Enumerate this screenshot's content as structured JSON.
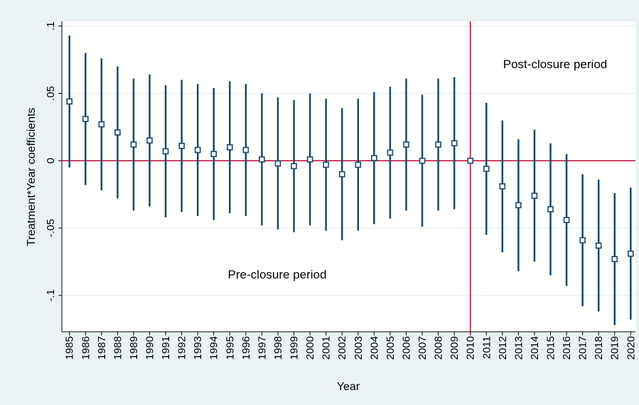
{
  "chart_data": {
    "type": "scatter",
    "subtype": "coefficient-plot-with-confidence-intervals",
    "title": "",
    "xlabel": "Year",
    "ylabel": "Treatment*Year coefficients",
    "ylim": [
      -0.127,
      0.1035
    ],
    "y_ticks": [
      0.1,
      0.05,
      0,
      -0.05,
      -0.1
    ],
    "y_tick_labels": [
      ".1",
      ".05",
      "0",
      "-.05",
      "-.1"
    ],
    "grid": true,
    "legend": "none",
    "x": [
      1985,
      1986,
      1987,
      1988,
      1989,
      1990,
      1991,
      1992,
      1993,
      1994,
      1995,
      1996,
      1997,
      1998,
      1999,
      2000,
      2001,
      2002,
      2003,
      2004,
      2005,
      2006,
      2007,
      2008,
      2009,
      2010,
      2011,
      2012,
      2013,
      2014,
      2015,
      2016,
      2017,
      2018,
      2019,
      2020
    ],
    "x_tick_labels": [
      "1985",
      "1986",
      "1987",
      "1988",
      "1989",
      "1990",
      "1991",
      "1992",
      "1993",
      "1994",
      "1995",
      "1996",
      "1997",
      "1998",
      "1999",
      "2000",
      "2001",
      "2002",
      "2003",
      "2004",
      "2005",
      "2006",
      "2007",
      "2008",
      "2009",
      "2010",
      "2011",
      "2012",
      "2013",
      "2014",
      "2015",
      "2016",
      "2017",
      "2018",
      "2019",
      "2020"
    ],
    "y": [
      0.044,
      0.031,
      0.027,
      0.021,
      0.012,
      0.015,
      0.007,
      0.011,
      0.008,
      0.005,
      0.01,
      0.008,
      0.001,
      -0.002,
      -0.004,
      0.001,
      -0.003,
      -0.01,
      -0.003,
      0.002,
      0.006,
      0.012,
      0.0,
      0.012,
      0.013,
      0.0,
      -0.006,
      -0.019,
      -0.033,
      -0.026,
      -0.036,
      -0.044,
      -0.059,
      -0.063,
      -0.073,
      -0.069
    ],
    "ci_low": [
      -0.005,
      -0.018,
      -0.022,
      -0.028,
      -0.037,
      -0.034,
      -0.042,
      -0.038,
      -0.041,
      -0.044,
      -0.039,
      -0.041,
      -0.048,
      -0.051,
      -0.053,
      -0.048,
      -0.052,
      -0.059,
      -0.052,
      -0.047,
      -0.043,
      -0.037,
      -0.049,
      -0.037,
      -0.036,
      0.0,
      -0.055,
      -0.068,
      -0.082,
      -0.075,
      -0.085,
      -0.093,
      -0.108,
      -0.112,
      -0.122,
      -0.118
    ],
    "ci_high": [
      0.093,
      0.08,
      0.076,
      0.07,
      0.061,
      0.064,
      0.056,
      0.06,
      0.057,
      0.054,
      0.059,
      0.057,
      0.05,
      0.047,
      0.045,
      0.05,
      0.046,
      0.039,
      0.046,
      0.051,
      0.055,
      0.061,
      0.049,
      0.061,
      0.062,
      0.0,
      0.043,
      0.03,
      0.016,
      0.023,
      0.013,
      0.005,
      -0.01,
      -0.014,
      -0.024,
      -0.02
    ],
    "reference_lines": {
      "horizontal_y": 0,
      "vertical_x": 2010
    },
    "annotations": [
      "Post-closure period",
      "Pre-closure period"
    ],
    "colors": {
      "outer_background": "#eaf2f3",
      "plot_background": "#ffffff",
      "grid": "#e3eaed",
      "ci_bar": "#1a476f",
      "marker_edge": "#1a476f",
      "marker_fill": "#ffffff",
      "reference_line": "#c10534",
      "axis": "#000000"
    }
  }
}
